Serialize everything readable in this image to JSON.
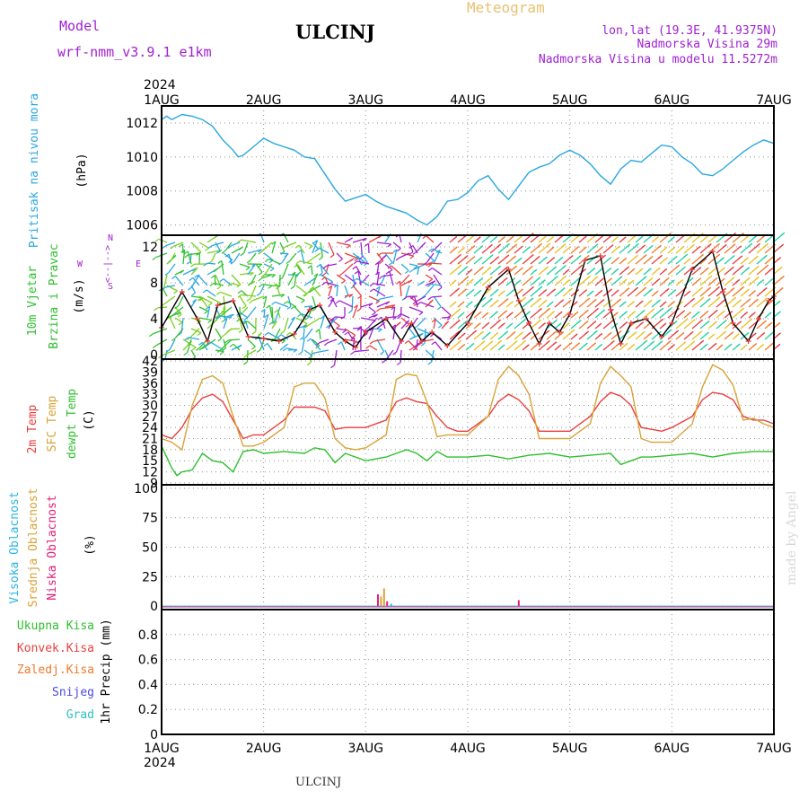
{
  "header": {
    "model_label": "Model",
    "model_name": "wrf-nmm_v3.9.1 e1km",
    "station": "ULCINJ",
    "product": "Meteogram",
    "lonlat": "lon,lat (19.3E, 41.9375N)",
    "elevation": "Nadmorska Visina 29m",
    "model_elevation": "Nadmorska Visina u modelu 11.5272m",
    "year_top": "2024",
    "year_bottom": "2024",
    "footer_station": "ULCINJ",
    "credit": "made by Angel"
  },
  "colors": {
    "pressure": "#2aa7e0",
    "temp2m": "#e83e3e",
    "sfc_temp": "#d9a338",
    "dewpoint": "#2ec02e",
    "wind_speed": "#000000",
    "wind_gust_marker": "#e83e3e",
    "high_cloud": "#2bb5e0",
    "mid_cloud": "#d9a338",
    "low_cloud": "#e0207a",
    "total_rain": "#2ec02e",
    "conv_rain": "#e83e3e",
    "freezing_rain": "#f07a2a",
    "snow": "#4a4ae0",
    "hail": "#2ec0c0",
    "purple_text": "#a020d0",
    "meteogram_text": "#e8c070"
  },
  "chart_data": [
    {
      "type": "line",
      "panel": "pressure",
      "ylabel_parts": [
        "Pritisak na nivou mora",
        "(hPa)"
      ],
      "x_categories": [
        "1AUG",
        "2AUG",
        "3AUG",
        "4AUG",
        "5AUG",
        "6AUG",
        "7AUG"
      ],
      "x_days": [
        0,
        1,
        2,
        3,
        4,
        5,
        6
      ],
      "ylim": [
        1005.4,
        1013
      ],
      "yticks": [
        1006,
        1008,
        1010,
        1012
      ],
      "grid": true,
      "series": [
        {
          "key": "pressure",
          "x": [
            0,
            0.05,
            0.1,
            0.2,
            0.3,
            0.4,
            0.5,
            0.6,
            0.7,
            0.75,
            0.8,
            0.9,
            1.0,
            1.1,
            1.2,
            1.3,
            1.4,
            1.5,
            1.6,
            1.7,
            1.8,
            1.9,
            2.0,
            2.1,
            2.2,
            2.3,
            2.4,
            2.5,
            2.6,
            2.7,
            2.8,
            2.9,
            3.0,
            3.1,
            3.2,
            3.3,
            3.4,
            3.5,
            3.6,
            3.7,
            3.8,
            3.9,
            4.0,
            4.1,
            4.2,
            4.3,
            4.4,
            4.5,
            4.6,
            4.7,
            4.8,
            4.9,
            5.0,
            5.1,
            5.2,
            5.3,
            5.4,
            5.5,
            5.6,
            5.7,
            5.8,
            5.9,
            6.0
          ],
          "values": [
            1012.2,
            1012.4,
            1012.2,
            1012.5,
            1012.4,
            1012.2,
            1011.8,
            1011.0,
            1010.4,
            1010.0,
            1010.1,
            1010.6,
            1011.1,
            1010.8,
            1010.6,
            1010.4,
            1010.0,
            1009.9,
            1009.0,
            1008.1,
            1007.4,
            1007.6,
            1007.8,
            1007.4,
            1007.1,
            1006.9,
            1006.7,
            1006.3,
            1006.0,
            1006.5,
            1007.4,
            1007.5,
            1007.9,
            1008.6,
            1008.9,
            1008.1,
            1007.5,
            1008.3,
            1009.1,
            1009.4,
            1009.6,
            1010.1,
            1010.4,
            1010.1,
            1009.6,
            1008.9,
            1008.4,
            1009.3,
            1009.8,
            1009.7,
            1010.2,
            1010.7,
            1010.6,
            1010.0,
            1009.6,
            1009.0,
            1008.9,
            1009.3,
            1009.8,
            1010.3,
            1010.7,
            1011.0,
            1010.8
          ]
        }
      ]
    },
    {
      "type": "line",
      "panel": "wind",
      "ylabel_parts": [
        "10m Vjetar",
        "Brzina i Pravac",
        "(m/s)"
      ],
      "compass_labels": [
        "N",
        "S",
        "W",
        "E",
        "<--|-->"
      ],
      "ylim": [
        -0.5,
        13.3
      ],
      "yticks": [
        0,
        4,
        8,
        12
      ],
      "grid": true,
      "series": [
        {
          "key": "wind_speed",
          "x": [
            0,
            0.2,
            0.35,
            0.45,
            0.55,
            0.7,
            0.85,
            1.0,
            1.15,
            1.3,
            1.45,
            1.55,
            1.7,
            1.8,
            1.9,
            2.0,
            2.2,
            2.35,
            2.45,
            2.55,
            2.65,
            2.8,
            3.0,
            3.2,
            3.4,
            3.5,
            3.6,
            3.7,
            3.8,
            3.9,
            4.0,
            4.15,
            4.3,
            4.4,
            4.5,
            4.6,
            4.75,
            4.9,
            5.0,
            5.2,
            5.4,
            5.5,
            5.6,
            5.75,
            5.85,
            5.95,
            6.0
          ],
          "values": [
            3.0,
            7.0,
            4.0,
            1.5,
            5.5,
            6.0,
            2.0,
            1.8,
            1.5,
            2.3,
            5.0,
            5.5,
            2.5,
            1.5,
            0.8,
            2.5,
            4.0,
            1.5,
            3.5,
            1.5,
            2.5,
            1.0,
            3.5,
            7.5,
            9.5,
            6.0,
            3.5,
            1.2,
            3.5,
            2.5,
            4.5,
            10.5,
            11.0,
            5.0,
            1.2,
            3.5,
            4.0,
            2.0,
            3.5,
            9.5,
            11.5,
            7.0,
            3.5,
            1.5,
            4.0,
            6.0,
            6.5
          ]
        }
      ]
    },
    {
      "type": "line",
      "panel": "temperature",
      "ylabel_parts": [
        "2m Temp",
        "SFC Temp",
        "dewpt Temp",
        "(C)"
      ],
      "ylim": [
        8.5,
        42.5
      ],
      "yticks": [
        9,
        12,
        15,
        18,
        21,
        24,
        27,
        30,
        33,
        36,
        39,
        42
      ],
      "grid": true,
      "series": [
        {
          "key": "temp2m",
          "x": [
            0,
            0.1,
            0.2,
            0.3,
            0.4,
            0.5,
            0.6,
            0.7,
            0.8,
            0.9,
            1.0,
            1.2,
            1.3,
            1.4,
            1.5,
            1.6,
            1.7,
            1.8,
            1.9,
            2.0,
            2.2,
            2.3,
            2.4,
            2.5,
            2.6,
            2.7,
            2.8,
            2.9,
            3.0,
            3.2,
            3.3,
            3.4,
            3.5,
            3.6,
            3.7,
            3.8,
            3.9,
            4.0,
            4.2,
            4.3,
            4.4,
            4.5,
            4.6,
            4.7,
            4.8,
            4.9,
            5.0,
            5.2,
            5.3,
            5.4,
            5.5,
            5.6,
            5.7,
            5.8,
            5.9,
            6.0
          ],
          "values": [
            22,
            21,
            24,
            29,
            32,
            33,
            31,
            26,
            21,
            22,
            22,
            26,
            29.5,
            29.5,
            29.5,
            28.5,
            23.5,
            24,
            24,
            24,
            26,
            31,
            32,
            31,
            30.5,
            27,
            24,
            23,
            23,
            27,
            31,
            33,
            31.5,
            28.5,
            23,
            23,
            23,
            23,
            27,
            31,
            33.5,
            32.5,
            30,
            24,
            23.5,
            23,
            24,
            27,
            31.5,
            33.5,
            33,
            31.5,
            27,
            26,
            26,
            25
          ]
        },
        {
          "key": "sfc_temp",
          "x": [
            0,
            0.1,
            0.2,
            0.3,
            0.4,
            0.5,
            0.6,
            0.7,
            0.8,
            0.9,
            1.0,
            1.2,
            1.3,
            1.4,
            1.5,
            1.6,
            1.7,
            1.8,
            1.9,
            2.0,
            2.2,
            2.3,
            2.4,
            2.5,
            2.6,
            2.7,
            2.8,
            2.9,
            3.0,
            3.2,
            3.3,
            3.4,
            3.5,
            3.6,
            3.7,
            3.8,
            3.9,
            4.0,
            4.2,
            4.3,
            4.4,
            4.5,
            4.6,
            4.7,
            4.8,
            4.9,
            5.0,
            5.2,
            5.3,
            5.4,
            5.5,
            5.6,
            5.7,
            5.8,
            5.9,
            6.0
          ],
          "values": [
            21,
            20,
            18,
            30,
            37,
            38,
            36,
            27,
            19,
            19,
            20,
            24,
            35,
            36,
            36,
            32,
            21,
            18.5,
            18,
            18.5,
            22,
            37,
            38.5,
            38,
            31,
            21.5,
            22,
            22,
            22,
            27,
            37,
            40.5,
            38,
            33,
            21,
            21,
            21,
            21,
            25,
            36,
            40.5,
            38,
            35,
            21,
            20,
            20,
            20,
            25,
            35,
            41,
            39.5,
            35.5,
            26,
            26.5,
            25,
            24
          ]
        },
        {
          "key": "dewpoint",
          "x": [
            0,
            0.1,
            0.15,
            0.2,
            0.3,
            0.4,
            0.5,
            0.6,
            0.7,
            0.8,
            0.9,
            1.0,
            1.2,
            1.4,
            1.5,
            1.6,
            1.7,
            1.8,
            2.0,
            2.2,
            2.4,
            2.5,
            2.6,
            2.7,
            2.8,
            3.0,
            3.2,
            3.4,
            3.6,
            3.8,
            4.0,
            4.2,
            4.4,
            4.5,
            4.6,
            4.7,
            4.8,
            5.0,
            5.2,
            5.4,
            5.6,
            5.8,
            6.0
          ],
          "values": [
            19,
            13,
            11,
            12,
            12.5,
            17,
            15,
            14.5,
            12,
            17.5,
            18,
            17,
            17.5,
            17,
            18.5,
            18,
            14.5,
            17,
            15,
            16,
            18,
            17,
            15,
            17.5,
            16,
            16,
            16.5,
            15.5,
            16.5,
            17,
            16,
            16.5,
            17,
            14,
            15,
            16,
            16,
            16.5,
            17,
            16,
            17,
            17.5,
            17.5
          ]
        }
      ]
    },
    {
      "type": "bar",
      "panel": "cloud",
      "ylabel_parts": [
        "Visoka Oblacnost",
        "Srednja Oblacnost",
        "Niska Oblacnost",
        "(%)"
      ],
      "ylim": [
        -3,
        103
      ],
      "yticks": [
        0,
        25,
        50,
        75,
        100
      ],
      "grid": true,
      "series": [
        {
          "key": "mid_cloud",
          "x": [
            2.15,
            2.18
          ],
          "values": [
            8,
            15
          ]
        },
        {
          "key": "low_cloud",
          "x": [
            2.12,
            2.21,
            3.5
          ],
          "values": [
            10,
            4,
            5
          ]
        },
        {
          "key": "high_cloud",
          "x": [
            2.25
          ],
          "values": [
            2
          ]
        }
      ]
    },
    {
      "type": "bar",
      "panel": "precip",
      "ylabel_parts": [
        "1hr Precip (mm)"
      ],
      "legend": [
        "Ukupna Kisa",
        "Konvek.Kisa",
        "Zaledj.Kisa",
        "Snijeg",
        "Grad"
      ],
      "ylim": [
        0,
        1
      ],
      "yticks": [
        0,
        0.2,
        0.4,
        0.6,
        0.8
      ],
      "grid": true,
      "series": []
    }
  ]
}
